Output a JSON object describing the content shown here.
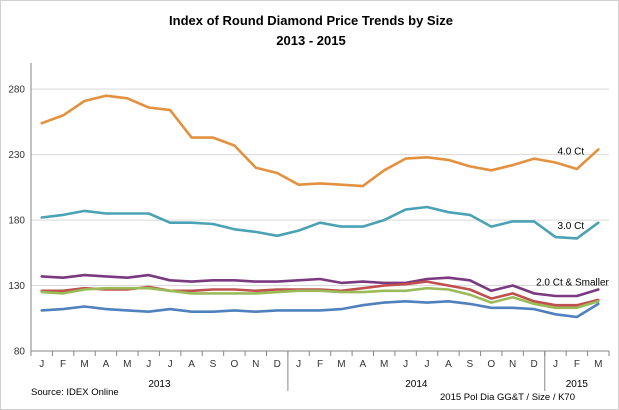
{
  "chart_data": {
    "type": "line",
    "title": "Index of Round Diamond Price Trends by Size",
    "subtitle": "2013 - 2015",
    "source": "Source:  IDEX Online",
    "credit": "2015 Pol Dia GG&T / Size / K70",
    "categories": [
      "J",
      "F",
      "M",
      "A",
      "M",
      "J",
      "J",
      "A",
      "S",
      "O",
      "N",
      "D",
      "J",
      "F",
      "M",
      "A",
      "M",
      "J",
      "J",
      "A",
      "S",
      "O",
      "N",
      "D",
      "J",
      "F",
      "M"
    ],
    "years": [
      {
        "label": "2013",
        "start": 0,
        "end": 11
      },
      {
        "label": "2014",
        "start": 12,
        "end": 23
      },
      {
        "label": "2015",
        "start": 24,
        "end": 26
      }
    ],
    "ylim": [
      80,
      300
    ],
    "yticks": [
      80,
      130,
      180,
      230,
      280
    ],
    "grid": true,
    "series": [
      {
        "name": "4.0 Ct",
        "color": "#e3913f",
        "label_index": 24,
        "values": [
          254,
          260,
          271,
          275,
          273,
          266,
          264,
          243,
          243,
          237,
          220,
          216,
          207,
          208,
          207,
          206,
          218,
          227,
          228,
          226,
          221,
          218,
          222,
          227,
          224,
          219,
          234
        ]
      },
      {
        "name": "3.0 Ct",
        "color": "#4aa2b4",
        "label_index": 24,
        "values": [
          182,
          184,
          187,
          185,
          185,
          185,
          178,
          178,
          177,
          173,
          171,
          168,
          172,
          178,
          175,
          175,
          180,
          188,
          190,
          186,
          184,
          175,
          179,
          179,
          167,
          166,
          178
        ]
      },
      {
        "name": "2.0 Ct & Smaller",
        "color": "#7a3a7f",
        "label_index": 23,
        "values": [
          137,
          136,
          138,
          137,
          136,
          138,
          134,
          133,
          134,
          134,
          133,
          133,
          134,
          135,
          132,
          133,
          132,
          132,
          135,
          136,
          134,
          126,
          130,
          124,
          122,
          122,
          127
        ]
      },
      {
        "name": "",
        "color": "#c0504d",
        "values": [
          126,
          126,
          128,
          127,
          127,
          129,
          126,
          126,
          127,
          127,
          126,
          127,
          127,
          127,
          126,
          128,
          130,
          131,
          133,
          130,
          127,
          120,
          124,
          118,
          115,
          115,
          119
        ]
      },
      {
        "name": "",
        "color": "#9bbb59",
        "values": [
          125,
          124,
          127,
          128,
          128,
          128,
          126,
          124,
          124,
          124,
          124,
          125,
          126,
          126,
          125,
          125,
          126,
          126,
          128,
          127,
          123,
          117,
          121,
          116,
          113,
          113,
          118
        ]
      },
      {
        "name": "",
        "color": "#4f81bd",
        "values": [
          111,
          112,
          114,
          112,
          111,
          110,
          112,
          110,
          110,
          111,
          110,
          111,
          111,
          111,
          112,
          115,
          117,
          118,
          117,
          118,
          116,
          113,
          113,
          112,
          108,
          106,
          116
        ]
      }
    ]
  }
}
